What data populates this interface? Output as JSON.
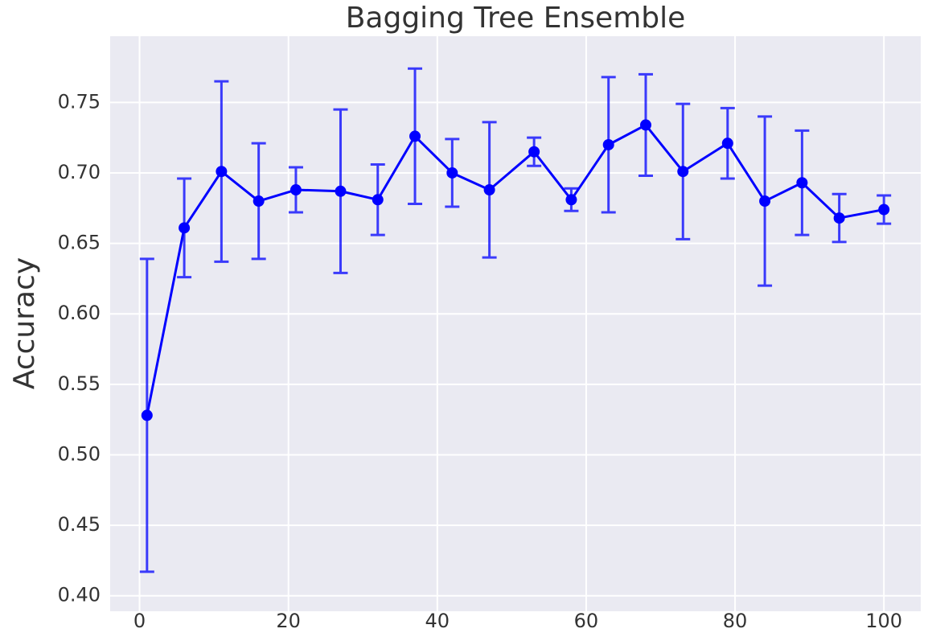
{
  "chart_data": {
    "type": "errorbar-line",
    "title": "Bagging Tree Ensemble",
    "y_label": "Accuracy",
    "x": [
      1,
      6,
      11,
      16,
      21,
      27,
      32,
      37,
      42,
      47,
      53,
      58,
      63,
      68,
      73,
      79,
      84,
      89,
      94,
      100
    ],
    "series": [
      {
        "color": "#0000ff",
        "values": [
          0.528,
          0.661,
          0.701,
          0.68,
          0.688,
          0.687,
          0.681,
          0.726,
          0.7,
          0.688,
          0.715,
          0.681,
          0.72,
          0.734,
          0.701,
          0.721,
          0.68,
          0.693,
          0.668,
          0.674
        ],
        "errors": [
          0.111,
          0.035,
          0.064,
          0.041,
          0.016,
          0.058,
          0.025,
          0.048,
          0.024,
          0.048,
          0.01,
          0.008,
          0.048,
          0.036,
          0.048,
          0.025,
          0.06,
          0.037,
          0.017,
          0.01
        ]
      }
    ],
    "xlim": [
      -3.95,
      104.95
    ],
    "ylim": [
      0.389,
      0.797
    ],
    "xticks": [
      0,
      20,
      40,
      60,
      80,
      100
    ],
    "yticks": [
      {
        "value": 0.4,
        "label": "0.40"
      },
      0.45,
      {
        "value": 0.5,
        "label": "0.50"
      },
      0.55,
      {
        "value": 0.6,
        "label": "0.60"
      },
      0.65,
      {
        "value": 0.7,
        "label": "0.70"
      },
      0.75
    ],
    "grid": true
  }
}
